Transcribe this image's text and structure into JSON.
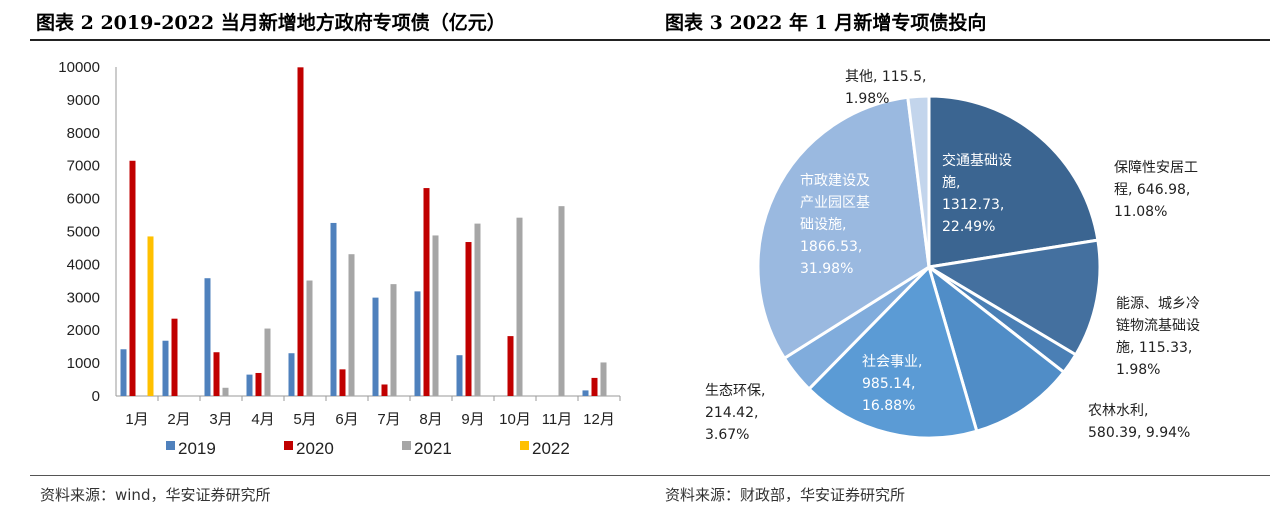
{
  "titles": {
    "left": "图表 2 2019-2022 当月新增地方政府专项债（亿元）",
    "right": "图表 3 2022 年 1 月新增专项债投向"
  },
  "sources": {
    "left": "资料来源：wind，华安证券研究所",
    "right": "资料来源：财政部，华安证券研究所"
  },
  "chart_data": [
    {
      "type": "bar",
      "title": "图表 2 2019-2022 当月新增地方政府专项债（亿元）",
      "categories": [
        "1月",
        "2月",
        "3月",
        "4月",
        "5月",
        "6月",
        "7月",
        "8月",
        "9月",
        "10月",
        "11月",
        "12月"
      ],
      "ylim": [
        0,
        10000
      ],
      "yticks": [
        0,
        1000,
        2000,
        3000,
        4000,
        5000,
        6000,
        7000,
        8000,
        9000,
        10000
      ],
      "series": [
        {
          "name": "2019",
          "color": "#4f81bd",
          "values": [
            1420,
            1680,
            3580,
            650,
            1300,
            5260,
            2990,
            3180,
            1240,
            0,
            0,
            170
          ]
        },
        {
          "name": "2020",
          "color": "#c00000",
          "values": [
            7150,
            2350,
            1330,
            700,
            9990,
            810,
            350,
            6320,
            4680,
            1820,
            0,
            550
          ]
        },
        {
          "name": "2021",
          "color": "#a6a6a6",
          "values": [
            0,
            0,
            250,
            2050,
            3510,
            4310,
            3400,
            4880,
            5240,
            5420,
            5770,
            1020
          ]
        },
        {
          "name": "2022",
          "color": "#ffc000",
          "values": [
            4850,
            0,
            0,
            0,
            0,
            0,
            0,
            0,
            0,
            0,
            0,
            0
          ]
        }
      ]
    },
    {
      "type": "pie",
      "title": "图表 3 2022 年 1 月新增专项债投向",
      "slices": [
        {
          "name": "交通基础设施",
          "value": 1312.73,
          "percent": "22.49%",
          "color": "#3b6591",
          "label_lines": [
            "交通基础设",
            "施,",
            "1312.73,",
            "22.49%"
          ]
        },
        {
          "name": "保障性安居工程",
          "value": 646.98,
          "percent": "11.08%",
          "color": "#44709f",
          "label_lines": [
            "保障性安居工",
            "程, 646.98,",
            "11.08%"
          ]
        },
        {
          "name": "能源、城乡冷链物流基础设施",
          "value": 115.33,
          "percent": "1.98%",
          "color": "#4a7fb5",
          "label_lines": [
            "能源、城乡冷",
            "链物流基础设",
            "施, 115.33,",
            "1.98%"
          ]
        },
        {
          "name": "农林水利",
          "value": 580.39,
          "percent": "9.94%",
          "color": "#508dc7",
          "label_lines": [
            "农林水利,",
            "580.39, 9.94%"
          ]
        },
        {
          "name": "社会事业",
          "value": 985.14,
          "percent": "16.88%",
          "color": "#5b9bd5",
          "label_lines": [
            "社会事业,",
            "985.14,",
            "16.88%"
          ]
        },
        {
          "name": "生态环保",
          "value": 214.42,
          "percent": "3.67%",
          "color": "#80acdc",
          "label_lines": [
            "生态环保,",
            "214.42,",
            "3.67%"
          ]
        },
        {
          "name": "市政建设及产业园区基础设施",
          "value": 1866.53,
          "percent": "31.98%",
          "color": "#9ab9e0",
          "label_lines": [
            "市政建设及",
            "产业园区基",
            "础设施,",
            "1866.53,",
            "31.98%"
          ]
        },
        {
          "name": "其他",
          "value": 115.5,
          "percent": "1.98%",
          "color": "#c3d5ec",
          "label_lines": [
            "其他, 115.5,",
            "1.98%"
          ]
        }
      ]
    }
  ]
}
